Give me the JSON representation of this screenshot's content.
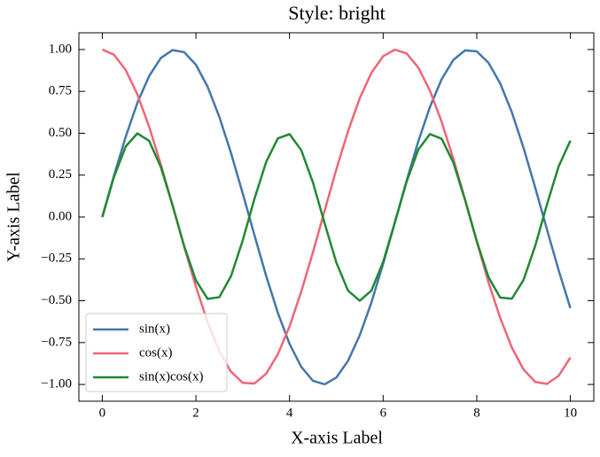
{
  "chart_data": {
    "type": "line",
    "title": "Style: bright",
    "xlabel": "X-axis Label",
    "ylabel": "Y-axis Label",
    "x": [
      0,
      0.25,
      0.5,
      0.75,
      1,
      1.25,
      1.5,
      1.75,
      2,
      2.25,
      2.5,
      2.75,
      3,
      3.25,
      3.5,
      3.75,
      4,
      4.25,
      4.5,
      4.75,
      5,
      5.25,
      5.5,
      5.75,
      6,
      6.25,
      6.5,
      6.75,
      7,
      7.25,
      7.5,
      7.75,
      8,
      8.25,
      8.5,
      8.75,
      9,
      9.25,
      9.5,
      9.75,
      10
    ],
    "series": [
      {
        "name": "sin(x)",
        "color": "#4477aa",
        "values": [
          0,
          0.247,
          0.479,
          0.682,
          0.841,
          0.949,
          0.997,
          0.984,
          0.909,
          0.778,
          0.598,
          0.382,
          0.141,
          -0.108,
          -0.351,
          -0.572,
          -0.757,
          -0.895,
          -0.978,
          -0.999,
          -0.959,
          -0.859,
          -0.706,
          -0.51,
          -0.279,
          -0.033,
          0.215,
          0.451,
          0.657,
          0.823,
          0.938,
          0.995,
          0.989,
          0.921,
          0.798,
          0.625,
          0.412,
          0.174,
          -0.075,
          -0.319,
          -0.544
        ]
      },
      {
        "name": "cos(x)",
        "color": "#ee6677",
        "values": [
          1,
          0.969,
          0.878,
          0.732,
          0.54,
          0.315,
          0.071,
          -0.178,
          -0.416,
          -0.628,
          -0.801,
          -0.924,
          -0.99,
          -0.994,
          -0.936,
          -0.82,
          -0.654,
          -0.446,
          -0.211,
          0.038,
          0.284,
          0.512,
          0.709,
          0.861,
          0.96,
          0.999,
          0.977,
          0.893,
          0.754,
          0.568,
          0.347,
          0.103,
          -0.146,
          -0.39,
          -0.602,
          -0.78,
          -0.911,
          -0.985,
          -0.997,
          -0.948,
          -0.839
        ]
      },
      {
        "name": "sin(x)cos(x)",
        "color": "#228833",
        "values": [
          0,
          0.24,
          0.421,
          0.499,
          0.455,
          0.299,
          0.071,
          -0.175,
          -0.378,
          -0.489,
          -0.479,
          -0.353,
          -0.14,
          0.108,
          0.328,
          0.469,
          0.495,
          0.399,
          0.206,
          -0.038,
          -0.272,
          -0.44,
          -0.5,
          -0.439,
          -0.268,
          -0.033,
          0.21,
          0.402,
          0.495,
          0.467,
          0.325,
          0.102,
          -0.144,
          -0.359,
          -0.481,
          -0.488,
          -0.375,
          -0.171,
          0.075,
          0.303,
          0.456
        ]
      }
    ],
    "xlim": [
      -0.5,
      10.5
    ],
    "ylim": [
      -1.1,
      1.1
    ],
    "xticks": [
      0,
      2,
      4,
      6,
      8,
      10
    ],
    "yticks": [
      {
        "value": -1,
        "label": "−1.00"
      },
      {
        "value": -0.75,
        "label": "−0.75"
      },
      {
        "value": -0.5,
        "label": "−0.50"
      },
      {
        "value": -0.25,
        "label": "−0.25"
      },
      {
        "value": 0,
        "label": "0.00"
      },
      {
        "value": 0.25,
        "label": "0.25"
      },
      {
        "value": 0.5,
        "label": "0.50"
      },
      {
        "value": 0.75,
        "label": "0.75"
      },
      {
        "value": 1,
        "label": "1.00"
      }
    ],
    "legend": "lower left",
    "grid": false
  }
}
